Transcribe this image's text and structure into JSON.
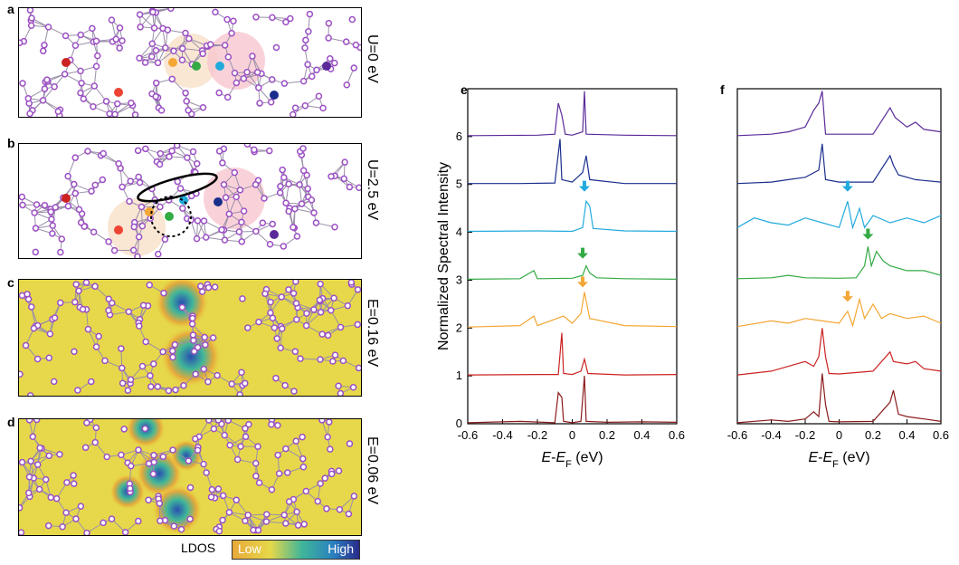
{
  "panels": {
    "a": {
      "letter": "a",
      "side_label": "U=0 eV"
    },
    "b": {
      "letter": "b",
      "side_label": "U=2.5 eV"
    },
    "c": {
      "letter": "c",
      "side_label": "E=0.16 eV"
    },
    "d": {
      "letter": "d",
      "side_label": "E=0.06 eV"
    }
  },
  "colorbar": {
    "title": "LDOS",
    "low": "Low",
    "high": "High"
  },
  "colors": {
    "lattice_atom": "#9b4fc4",
    "lattice_bond": "#9a8fa8",
    "ldos_background": "#e6d84a",
    "site_colors": [
      "#cc2222",
      "#ee4433",
      "#f4a635",
      "#33aa44",
      "#22aadd",
      "#1a2e8c",
      "#5a2a99"
    ]
  },
  "chart_data": [
    {
      "panel": "e",
      "type": "line",
      "xlabel": "E-EF (eV)",
      "ylabel": "Normalized Spectral Intensity",
      "xlim": [
        -0.6,
        0.6
      ],
      "ylim": [
        0,
        7
      ],
      "xticks": [
        "-0.6",
        "-0.4",
        "-0.2",
        "0",
        "0.2",
        "0.4",
        "0.6"
      ],
      "yticks": [
        "0",
        "1",
        "2",
        "3",
        "4",
        "5",
        "6"
      ],
      "series": [
        {
          "color": "#8b1a1a",
          "offset": 0,
          "points": [
            [
              -0.6,
              0.02
            ],
            [
              -0.3,
              0.05
            ],
            [
              -0.1,
              0.02
            ],
            [
              -0.08,
              0.65
            ],
            [
              -0.06,
              0.55
            ],
            [
              -0.05,
              0.05
            ],
            [
              0.0,
              0.02
            ],
            [
              0.05,
              0.05
            ],
            [
              0.07,
              1.0
            ],
            [
              0.08,
              0.05
            ],
            [
              0.2,
              0.03
            ],
            [
              0.4,
              0.04
            ],
            [
              0.6,
              0.03
            ]
          ]
        },
        {
          "color": "#cc2222",
          "offset": 1,
          "points": [
            [
              -0.6,
              1.02
            ],
            [
              -0.2,
              1.03
            ],
            [
              -0.08,
              1.03
            ],
            [
              -0.06,
              1.9
            ],
            [
              -0.05,
              1.05
            ],
            [
              0.0,
              1.03
            ],
            [
              0.05,
              1.1
            ],
            [
              0.07,
              1.35
            ],
            [
              0.09,
              1.05
            ],
            [
              0.3,
              1.02
            ],
            [
              0.6,
              1.03
            ]
          ]
        },
        {
          "color": "#f4a635",
          "offset": 2,
          "points": [
            [
              -0.6,
              2.02
            ],
            [
              -0.3,
              2.05
            ],
            [
              -0.22,
              2.25
            ],
            [
              -0.2,
              2.05
            ],
            [
              -0.05,
              2.25
            ],
            [
              0.0,
              2.1
            ],
            [
              0.05,
              2.3
            ],
            [
              0.07,
              2.75
            ],
            [
              0.1,
              2.2
            ],
            [
              0.3,
              2.05
            ],
            [
              0.6,
              2.03
            ]
          ]
        },
        {
          "color": "#33aa44",
          "offset": 3,
          "points": [
            [
              -0.6,
              3.02
            ],
            [
              -0.3,
              3.03
            ],
            [
              -0.22,
              3.2
            ],
            [
              -0.2,
              3.03
            ],
            [
              0.0,
              3.04
            ],
            [
              0.06,
              3.1
            ],
            [
              0.08,
              3.3
            ],
            [
              0.1,
              3.15
            ],
            [
              0.14,
              3.05
            ],
            [
              0.3,
              3.03
            ],
            [
              0.6,
              3.02
            ]
          ]
        },
        {
          "color": "#22aadd",
          "offset": 4,
          "points": [
            [
              -0.6,
              4.02
            ],
            [
              -0.2,
              4.03
            ],
            [
              0.0,
              4.02
            ],
            [
              0.06,
              4.1
            ],
            [
              0.08,
              4.65
            ],
            [
              0.1,
              4.55
            ],
            [
              0.12,
              4.08
            ],
            [
              0.3,
              4.03
            ],
            [
              0.6,
              4.02
            ]
          ]
        },
        {
          "color": "#1a2e8c",
          "offset": 5,
          "points": [
            [
              -0.6,
              5.02
            ],
            [
              -0.3,
              5.02
            ],
            [
              -0.1,
              5.03
            ],
            [
              -0.07,
              5.95
            ],
            [
              -0.06,
              5.1
            ],
            [
              0.0,
              5.05
            ],
            [
              0.06,
              5.25
            ],
            [
              0.08,
              5.6
            ],
            [
              0.1,
              5.1
            ],
            [
              0.3,
              5.02
            ],
            [
              0.6,
              5.02
            ]
          ]
        },
        {
          "color": "#5a2a99",
          "offset": 6,
          "points": [
            [
              -0.6,
              6.02
            ],
            [
              -0.2,
              6.03
            ],
            [
              -0.1,
              6.05
            ],
            [
              -0.08,
              6.7
            ],
            [
              -0.06,
              6.45
            ],
            [
              -0.04,
              6.05
            ],
            [
              0.0,
              6.03
            ],
            [
              0.06,
              6.1
            ],
            [
              0.07,
              6.95
            ],
            [
              0.08,
              6.05
            ],
            [
              0.3,
              6.03
            ],
            [
              0.6,
              6.02
            ]
          ]
        }
      ],
      "arrows": [
        {
          "color": "#22aadd",
          "x": 0.07,
          "y": 4.85
        },
        {
          "color": "#33aa44",
          "x": 0.06,
          "y": 3.45
        },
        {
          "color": "#f4a635",
          "x": 0.06,
          "y": 2.85
        }
      ]
    },
    {
      "panel": "f",
      "type": "line",
      "xlabel": "E-EF (eV)",
      "xlim": [
        -0.6,
        0.6
      ],
      "ylim": [
        0,
        7
      ],
      "xticks": [
        "-0.6",
        "-0.4",
        "-0.2",
        "0",
        "0.2",
        "0.4",
        "0.6"
      ],
      "series": [
        {
          "color": "#8b1a1a",
          "offset": 0,
          "points": [
            [
              -0.6,
              0.02
            ],
            [
              -0.4,
              0.08
            ],
            [
              -0.3,
              0.05
            ],
            [
              -0.2,
              0.1
            ],
            [
              -0.15,
              0.25
            ],
            [
              -0.12,
              0.15
            ],
            [
              -0.1,
              1.05
            ],
            [
              -0.08,
              0.4
            ],
            [
              -0.06,
              0.05
            ],
            [
              0.0,
              0.04
            ],
            [
              0.2,
              0.05
            ],
            [
              0.3,
              0.45
            ],
            [
              0.32,
              0.7
            ],
            [
              0.35,
              0.2
            ],
            [
              0.4,
              0.15
            ],
            [
              0.5,
              0.1
            ],
            [
              0.6,
              0.05
            ]
          ]
        },
        {
          "color": "#cc2222",
          "offset": 1,
          "points": [
            [
              -0.6,
              1.02
            ],
            [
              -0.4,
              1.1
            ],
            [
              -0.3,
              1.2
            ],
            [
              -0.2,
              1.3
            ],
            [
              -0.15,
              1.2
            ],
            [
              -0.12,
              1.4
            ],
            [
              -0.1,
              2.0
            ],
            [
              -0.08,
              1.4
            ],
            [
              -0.06,
              1.05
            ],
            [
              0.0,
              1.04
            ],
            [
              0.2,
              1.1
            ],
            [
              0.3,
              1.5
            ],
            [
              0.32,
              1.3
            ],
            [
              0.4,
              1.25
            ],
            [
              0.45,
              1.3
            ],
            [
              0.5,
              1.15
            ],
            [
              0.6,
              1.1
            ]
          ]
        },
        {
          "color": "#f4a635",
          "offset": 2,
          "points": [
            [
              -0.6,
              2.03
            ],
            [
              -0.4,
              2.15
            ],
            [
              -0.3,
              2.1
            ],
            [
              -0.2,
              2.2
            ],
            [
              -0.1,
              2.15
            ],
            [
              0.0,
              2.1
            ],
            [
              0.05,
              2.35
            ],
            [
              0.08,
              2.05
            ],
            [
              0.12,
              2.6
            ],
            [
              0.15,
              2.2
            ],
            [
              0.2,
              2.5
            ],
            [
              0.25,
              2.2
            ],
            [
              0.3,
              2.3
            ],
            [
              0.4,
              2.2
            ],
            [
              0.5,
              2.25
            ],
            [
              0.6,
              2.1
            ]
          ]
        },
        {
          "color": "#33aa44",
          "offset": 3,
          "points": [
            [
              -0.6,
              3.03
            ],
            [
              -0.4,
              3.05
            ],
            [
              -0.3,
              3.1
            ],
            [
              -0.2,
              3.05
            ],
            [
              0.0,
              3.04
            ],
            [
              0.1,
              3.05
            ],
            [
              0.15,
              3.3
            ],
            [
              0.17,
              3.7
            ],
            [
              0.19,
              3.3
            ],
            [
              0.22,
              3.6
            ],
            [
              0.26,
              3.4
            ],
            [
              0.3,
              3.3
            ],
            [
              0.4,
              3.2
            ],
            [
              0.5,
              3.2
            ],
            [
              0.6,
              3.1
            ]
          ]
        },
        {
          "color": "#22aadd",
          "offset": 4,
          "points": [
            [
              -0.6,
              4.1
            ],
            [
              -0.5,
              4.3
            ],
            [
              -0.4,
              4.2
            ],
            [
              -0.3,
              4.15
            ],
            [
              -0.2,
              4.3
            ],
            [
              -0.1,
              4.2
            ],
            [
              0.0,
              4.1
            ],
            [
              0.05,
              4.65
            ],
            [
              0.08,
              4.1
            ],
            [
              0.12,
              4.5
            ],
            [
              0.15,
              4.1
            ],
            [
              0.2,
              4.35
            ],
            [
              0.3,
              4.2
            ],
            [
              0.4,
              4.3
            ],
            [
              0.5,
              4.2
            ],
            [
              0.6,
              4.35
            ]
          ]
        },
        {
          "color": "#1a2e8c",
          "offset": 5,
          "points": [
            [
              -0.6,
              5.02
            ],
            [
              -0.4,
              5.05
            ],
            [
              -0.3,
              5.1
            ],
            [
              -0.2,
              5.15
            ],
            [
              -0.12,
              5.3
            ],
            [
              -0.1,
              5.85
            ],
            [
              -0.08,
              5.1
            ],
            [
              0.0,
              5.05
            ],
            [
              0.2,
              5.05
            ],
            [
              0.3,
              5.6
            ],
            [
              0.32,
              5.4
            ],
            [
              0.35,
              5.2
            ],
            [
              0.45,
              5.1
            ],
            [
              0.6,
              5.05
            ]
          ]
        },
        {
          "color": "#5a2a99",
          "offset": 6,
          "points": [
            [
              -0.6,
              6.02
            ],
            [
              -0.4,
              6.05
            ],
            [
              -0.3,
              6.1
            ],
            [
              -0.2,
              6.2
            ],
            [
              -0.15,
              6.55
            ],
            [
              -0.12,
              6.7
            ],
            [
              -0.1,
              6.95
            ],
            [
              -0.08,
              6.05
            ],
            [
              0.0,
              6.05
            ],
            [
              0.2,
              6.05
            ],
            [
              0.3,
              6.6
            ],
            [
              0.33,
              6.4
            ],
            [
              0.4,
              6.2
            ],
            [
              0.45,
              6.3
            ],
            [
              0.5,
              6.15
            ],
            [
              0.6,
              6.1
            ]
          ]
        }
      ],
      "arrows": [
        {
          "color": "#22aadd",
          "x": 0.05,
          "y": 4.85
        },
        {
          "color": "#33aa44",
          "x": 0.17,
          "y": 3.85
        },
        {
          "color": "#f4a635",
          "x": 0.05,
          "y": 2.55
        }
      ]
    }
  ]
}
